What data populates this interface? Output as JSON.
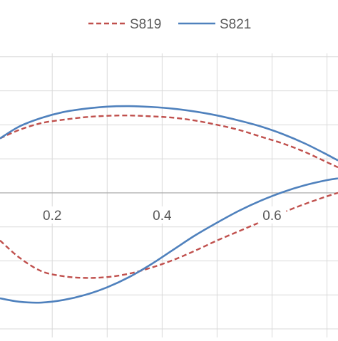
{
  "chart_data": {
    "type": "line",
    "title": "",
    "xlabel": "",
    "ylabel": "",
    "xlim": [
      0.105,
      0.72
    ],
    "ylim": [
      -0.085,
      0.082
    ],
    "grid": true,
    "legend_position": "top-center",
    "x_ticks": [
      0.2,
      0.4,
      0.6
    ],
    "x_tick_labels": [
      "0.2",
      "0.4",
      "0.6"
    ],
    "series": [
      {
        "name": "S819",
        "color": "#C0504D",
        "dash": "dashed",
        "upper": {
          "x": [
            0.105,
            0.14,
            0.18,
            0.22,
            0.26,
            0.3,
            0.34,
            0.38,
            0.42,
            0.46,
            0.5,
            0.54,
            0.58,
            0.62,
            0.66,
            0.7,
            0.72
          ],
          "y": [
            0.032,
            0.037,
            0.041,
            0.043,
            0.0445,
            0.0453,
            0.0455,
            0.045,
            0.0442,
            0.0425,
            0.04,
            0.037,
            0.033,
            0.029,
            0.024,
            0.018,
            0.015
          ]
        },
        "lower": {
          "x": [
            0.105,
            0.14,
            0.18,
            0.22,
            0.26,
            0.3,
            0.34,
            0.38,
            0.42,
            0.46,
            0.5,
            0.54,
            0.58,
            0.62,
            0.66,
            0.7,
            0.72
          ],
          "y": [
            -0.028,
            -0.038,
            -0.046,
            -0.049,
            -0.05,
            -0.0495,
            -0.0475,
            -0.044,
            -0.0395,
            -0.034,
            -0.028,
            -0.0225,
            -0.017,
            -0.0115,
            -0.0065,
            -0.002,
            0.0
          ]
        }
      },
      {
        "name": "S821",
        "color": "#4F81BD",
        "dash": "solid",
        "upper": {
          "x": [
            0.105,
            0.14,
            0.18,
            0.22,
            0.26,
            0.3,
            0.34,
            0.38,
            0.42,
            0.46,
            0.5,
            0.54,
            0.58,
            0.62,
            0.66,
            0.7,
            0.72
          ],
          "y": [
            0.032,
            0.039,
            0.044,
            0.0475,
            0.0495,
            0.0507,
            0.051,
            0.0505,
            0.0495,
            0.0478,
            0.0455,
            0.0425,
            0.039,
            0.0345,
            0.029,
            0.0225,
            0.019
          ]
        },
        "lower": {
          "x": [
            0.105,
            0.14,
            0.18,
            0.22,
            0.26,
            0.3,
            0.34,
            0.38,
            0.42,
            0.46,
            0.5,
            0.54,
            0.58,
            0.62,
            0.66,
            0.7,
            0.72
          ],
          "y": [
            -0.062,
            -0.064,
            -0.0645,
            -0.063,
            -0.06,
            -0.0555,
            -0.0495,
            -0.042,
            -0.0335,
            -0.025,
            -0.0175,
            -0.0105,
            -0.0045,
            0.0005,
            0.0045,
            0.0075,
            0.0085
          ]
        }
      }
    ]
  }
}
